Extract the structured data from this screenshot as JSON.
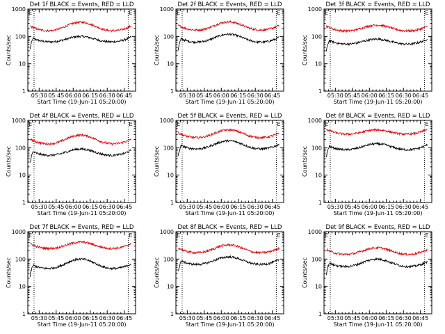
{
  "chart_data": [
    {
      "type": "line",
      "title": "Det 1f BLACK = Events, RED = LLD",
      "xlabel": "Start Time (19-Jun-11 05:20:00)",
      "ylabel": "Counts/sec",
      "y_scale": "log",
      "ylim": [
        1,
        1000
      ],
      "yticks": [
        "1",
        "10",
        "100",
        "1000"
      ],
      "xticks": [
        "05:30",
        "05:45",
        "06:00",
        "06:15",
        "06:30",
        "06:45"
      ],
      "markers": [
        "E",
        "E"
      ],
      "series": [
        {
          "color": "#000000",
          "base": 60,
          "peak": 100
        },
        {
          "color": "#e00000",
          "base": 150,
          "peak": 330
        }
      ]
    },
    {
      "type": "line",
      "title": "Det 2f BLACK = Events, RED = LLD",
      "xlabel": "Start Time (19-Jun-11 05:20:00)",
      "ylabel": "Counts/sec",
      "y_scale": "log",
      "ylim": [
        1,
        1000
      ],
      "yticks": [
        "1",
        "10",
        "100",
        "1000"
      ],
      "xticks": [
        "05:30",
        "05:45",
        "06:00",
        "06:15",
        "06:30",
        "06:45"
      ],
      "markers": [
        "E",
        "E"
      ],
      "series": [
        {
          "color": "#000000",
          "base": 58,
          "peak": 120
        },
        {
          "color": "#e00000",
          "base": 160,
          "peak": 340
        }
      ]
    },
    {
      "type": "line",
      "title": "Det 3f BLACK = Events, RED = LLD",
      "xlabel": "Start Time (19-Jun-11 05:20:00)",
      "ylabel": "Counts/sec",
      "y_scale": "log",
      "ylim": [
        1,
        1000
      ],
      "yticks": [
        "1",
        "10",
        "100",
        "1000"
      ],
      "xticks": [
        "05:30",
        "05:45",
        "06:00",
        "06:15",
        "06:30",
        "06:45"
      ],
      "markers": [
        "E",
        "E"
      ],
      "series": [
        {
          "color": "#000000",
          "base": 50,
          "peak": 80
        },
        {
          "color": "#e00000",
          "base": 150,
          "peak": 260
        }
      ]
    },
    {
      "type": "line",
      "title": "Det 4f BLACK = Events, RED = LLD",
      "xlabel": "Start Time (19-Jun-11 05:20:00)",
      "ylabel": "Counts/sec",
      "y_scale": "log",
      "ylim": [
        1,
        1000
      ],
      "yticks": [
        "1",
        "10",
        "100",
        "1000"
      ],
      "xticks": [
        "05:30",
        "05:45",
        "06:00",
        "06:15",
        "06:30",
        "06:45"
      ],
      "markers": [
        "E",
        "E"
      ],
      "series": [
        {
          "color": "#000000",
          "base": 50,
          "peak": 90
        },
        {
          "color": "#e00000",
          "base": 130,
          "peak": 290
        }
      ]
    },
    {
      "type": "line",
      "title": "Det 5f BLACK = Events, RED = LLD",
      "xlabel": "Start Time (19-Jun-11 05:20:00)",
      "ylabel": "Counts/sec",
      "y_scale": "log",
      "ylim": [
        1,
        1000
      ],
      "yticks": [
        "1",
        "10",
        "100",
        "1000"
      ],
      "xticks": [
        "05:30",
        "05:45",
        "06:00",
        "06:15",
        "06:30",
        "06:45"
      ],
      "markers": [
        "E",
        "E"
      ],
      "series": [
        {
          "color": "#000000",
          "base": 85,
          "peak": 180
        },
        {
          "color": "#e00000",
          "base": 220,
          "peak": 450
        }
      ]
    },
    {
      "type": "line",
      "title": "Det 6f BLACK = Events, RED = LLD",
      "xlabel": "Start Time (19-Jun-11 05:20:00)",
      "ylabel": "Counts/sec",
      "y_scale": "log",
      "ylim": [
        1,
        1000
      ],
      "yticks": [
        "1",
        "10",
        "100",
        "1000"
      ],
      "xticks": [
        "05:30",
        "05:45",
        "06:00",
        "06:15",
        "06:30",
        "06:45"
      ],
      "markers": [
        "E",
        "E"
      ],
      "series": [
        {
          "color": "#000000",
          "base": 80,
          "peak": 140
        },
        {
          "color": "#e00000",
          "base": 300,
          "peak": 450
        }
      ]
    },
    {
      "type": "line",
      "title": "Det 7f BLACK = Events, RED = LLD",
      "xlabel": "Start Time (19-Jun-11 05:20:00)",
      "ylabel": "Counts/sec",
      "y_scale": "log",
      "ylim": [
        1,
        1000
      ],
      "yticks": [
        "1",
        "10",
        "100",
        "1000"
      ],
      "xticks": [
        "05:30",
        "05:45",
        "06:00",
        "06:15",
        "06:30",
        "06:45"
      ],
      "markers": [
        "E",
        "E"
      ],
      "series": [
        {
          "color": "#000000",
          "base": 42,
          "peak": 100
        },
        {
          "color": "#e00000",
          "base": 230,
          "peak": 420
        }
      ]
    },
    {
      "type": "line",
      "title": "Det 8f BLACK = Events, RED = LLD",
      "xlabel": "Start Time (19-Jun-11 05:20:00)",
      "ylabel": "Counts/sec",
      "y_scale": "log",
      "ylim": [
        1,
        1000
      ],
      "yticks": [
        "1",
        "10",
        "100",
        "1000"
      ],
      "xticks": [
        "05:30",
        "05:45",
        "06:00",
        "06:15",
        "06:30",
        "06:45"
      ],
      "markers": [
        "E",
        "E"
      ],
      "series": [
        {
          "color": "#000000",
          "base": 60,
          "peak": 120
        },
        {
          "color": "#e00000",
          "base": 160,
          "peak": 330
        }
      ]
    },
    {
      "type": "line",
      "title": "Det 9f BLACK = Events, RED = LLD",
      "xlabel": "Start Time (19-Jun-11 05:20:00)",
      "ylabel": "Counts/sec",
      "y_scale": "log",
      "ylim": [
        1,
        1000
      ],
      "yticks": [
        "1",
        "10",
        "100",
        "1000"
      ],
      "xticks": [
        "05:30",
        "05:45",
        "06:00",
        "06:15",
        "06:30",
        "06:45"
      ],
      "markers": [
        "E",
        "E"
      ],
      "series": [
        {
          "color": "#000000",
          "base": 50,
          "peak": 100
        },
        {
          "color": "#e00000",
          "base": 140,
          "peak": 260
        }
      ]
    }
  ]
}
